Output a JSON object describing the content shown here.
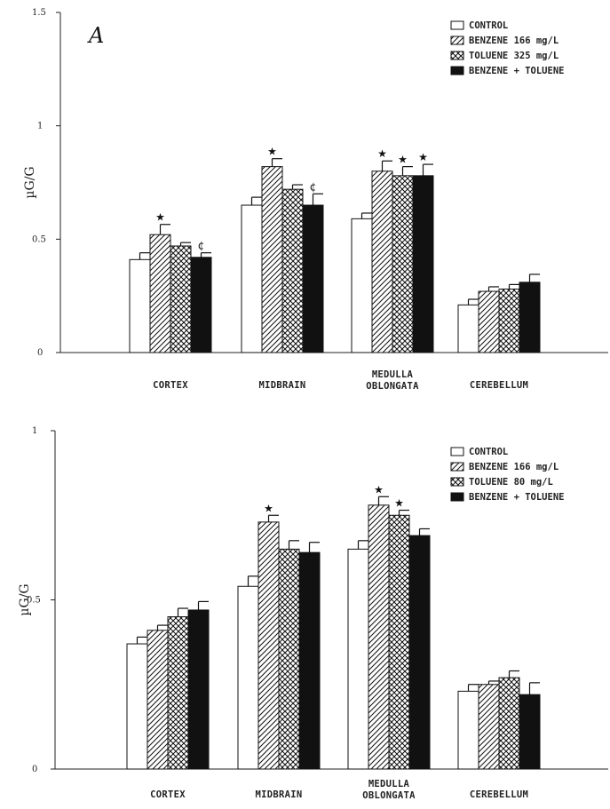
{
  "chart_data": [
    {
      "type": "bar",
      "panel_label": "A",
      "ylabel": "µG/G",
      "ylim": [
        0,
        1.5
      ],
      "yticks": [
        "0",
        "0.5",
        "1",
        "1.5"
      ],
      "ytick_values": [
        0,
        0.5,
        1,
        1.5
      ],
      "legend_position": "top-right",
      "categories": [
        "CORTEX",
        "MIDBRAIN",
        "MEDULLA\nOBLONGATA",
        "CEREBELLUM"
      ],
      "series": [
        {
          "name": "CONTROL",
          "pattern": "open",
          "values": [
            0.41,
            0.65,
            0.59,
            0.21
          ],
          "errors": [
            0.03,
            0.035,
            0.025,
            0.025
          ],
          "significance": [
            "",
            "",
            "",
            ""
          ]
        },
        {
          "name": "BENZENE 166 mg/L",
          "pattern": "hatched",
          "values": [
            0.52,
            0.82,
            0.8,
            0.27
          ],
          "errors": [
            0.045,
            0.035,
            0.045,
            0.02
          ],
          "significance": [
            "★",
            "★",
            "★",
            ""
          ]
        },
        {
          "name": "TOLUENE 325 mg/L",
          "pattern": "crosshatched",
          "values": [
            0.47,
            0.72,
            0.78,
            0.28
          ],
          "errors": [
            0.015,
            0.02,
            0.04,
            0.02
          ],
          "significance": [
            "",
            "",
            "★",
            ""
          ]
        },
        {
          "name": "BENZENE + TOLUENE",
          "pattern": "solid",
          "values": [
            0.42,
            0.65,
            0.78,
            0.31
          ],
          "errors": [
            0.02,
            0.05,
            0.05,
            0.035
          ],
          "significance": [
            "¢",
            "¢",
            "★",
            ""
          ]
        }
      ]
    },
    {
      "type": "bar",
      "ylabel": "µG/G",
      "ylim": [
        0,
        1
      ],
      "yticks": [
        "0",
        "0.5",
        "1"
      ],
      "ytick_values": [
        0,
        0.5,
        1
      ],
      "legend_position": "top-right",
      "categories": [
        "CORTEX",
        "MIDBRAIN",
        "MEDULLA\nOBLONGATA",
        "CEREBELLUM"
      ],
      "series": [
        {
          "name": "CONTROL",
          "pattern": "open",
          "values": [
            0.37,
            0.54,
            0.65,
            0.23
          ],
          "errors": [
            0.02,
            0.03,
            0.025,
            0.02
          ],
          "significance": [
            "",
            "",
            "",
            ""
          ]
        },
        {
          "name": "BENZENE 166 mg/L",
          "pattern": "hatched",
          "values": [
            0.41,
            0.73,
            0.78,
            0.25
          ],
          "errors": [
            0.015,
            0.02,
            0.025,
            0.01
          ],
          "significance": [
            "",
            "★",
            "★",
            ""
          ]
        },
        {
          "name": "TOLUENE 80 mg/L",
          "pattern": "crosshatched",
          "values": [
            0.45,
            0.65,
            0.75,
            0.27
          ],
          "errors": [
            0.025,
            0.025,
            0.015,
            0.02
          ],
          "significance": [
            "",
            "",
            "★",
            ""
          ]
        },
        {
          "name": "BENZENE + TOLUENE",
          "pattern": "solid",
          "values": [
            0.47,
            0.64,
            0.69,
            0.22
          ],
          "errors": [
            0.025,
            0.03,
            0.02,
            0.035
          ],
          "significance": [
            "",
            "",
            "",
            ""
          ]
        }
      ]
    }
  ]
}
